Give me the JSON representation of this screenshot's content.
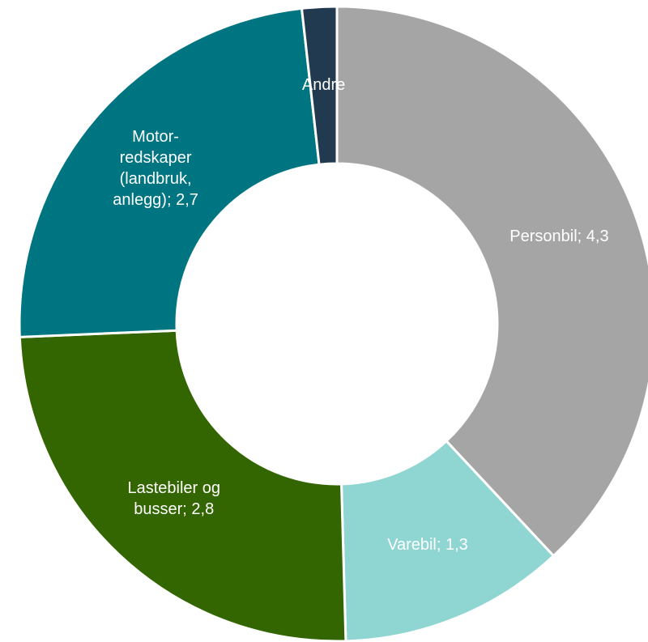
{
  "chart_data": {
    "type": "donut",
    "values": [
      4.3,
      1.3,
      2.8,
      2.7,
      0.2
    ],
    "value_labels": [
      "Personbil; 4,3",
      "Varebil; 1,3",
      "Lastebiler og busser; 2,8",
      "Motor-redskaper (landbruk, anlegg); 2,7",
      "Andre"
    ],
    "colors": [
      "#a5a5a5",
      "#8fd6d3",
      "#336600",
      "#007582",
      "#223a50"
    ]
  }
}
